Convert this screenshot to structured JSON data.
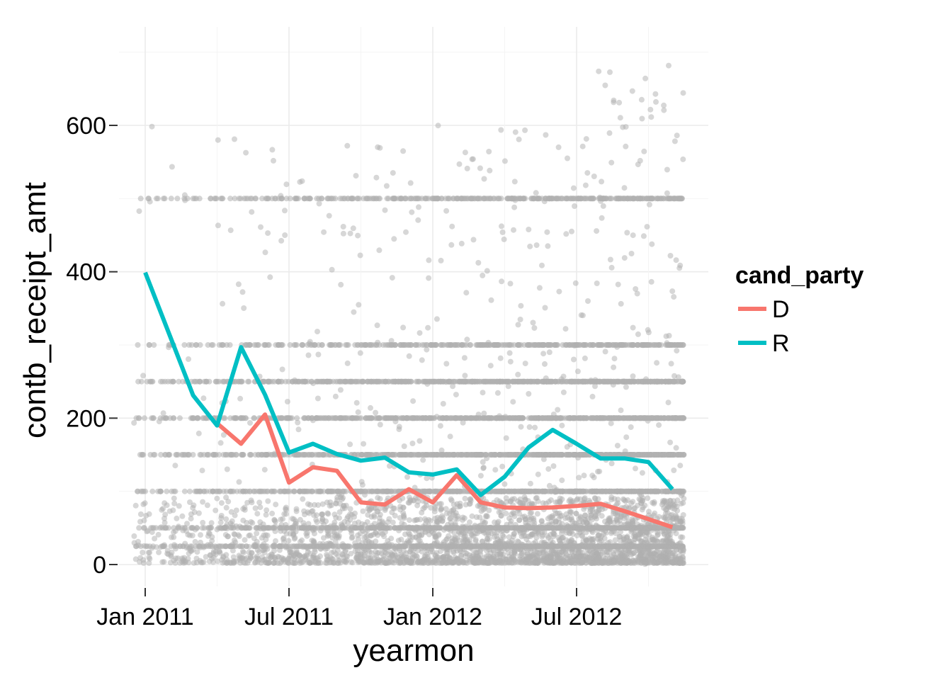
{
  "chart_data": {
    "type": "scatter",
    "xlabel": "yearmon",
    "ylabel": "contb_receipt_amt",
    "x_ticks": [
      "Jan 2011",
      "Jul 2011",
      "Jan 2012",
      "Jul 2012"
    ],
    "y_ticks": [
      "0",
      "200",
      "400",
      "600"
    ],
    "ylim": [
      -40,
      725
    ],
    "xlim": [
      "2010-11",
      "2012-12"
    ],
    "grid": true,
    "legend": {
      "title": "cand_party",
      "placement": "right",
      "entries": [
        {
          "label": "D",
          "color": "#F8766D"
        },
        {
          "label": "R",
          "color": "#00BFC4"
        }
      ]
    },
    "scatter_color": "#B0B0B0",
    "scatter_months": [
      "2011-01",
      "2011-02",
      "2011-03",
      "2011-04",
      "2011-05",
      "2011-06",
      "2011-07",
      "2011-08",
      "2011-09",
      "2011-10",
      "2011-11",
      "2011-12",
      "2012-01",
      "2012-02",
      "2012-03",
      "2012-04",
      "2012-05",
      "2012-06",
      "2012-07",
      "2012-08",
      "2012-09",
      "2012-10",
      "2012-11"
    ],
    "scatter_levels": [
      500,
      300,
      250,
      200,
      150,
      100,
      50,
      25
    ],
    "series": [
      {
        "name": "D",
        "color": "#F8766D",
        "x": [
          "2011-04",
          "2011-05",
          "2011-06",
          "2011-07",
          "2011-08",
          "2011-09",
          "2011-10",
          "2011-11",
          "2011-12",
          "2012-01",
          "2012-02",
          "2012-03",
          "2012-04",
          "2012-05",
          "2012-06",
          "2012-07",
          "2012-08",
          "2012-09",
          "2012-10",
          "2012-11"
        ],
        "values": [
          193,
          165,
          205,
          112,
          133,
          128,
          85,
          82,
          103,
          85,
          122,
          85,
          78,
          77,
          78,
          80,
          83,
          73,
          62,
          51
        ]
      },
      {
        "name": "R",
        "color": "#00BFC4",
        "x": [
          "2011-01",
          "2011-03",
          "2011-04",
          "2011-05",
          "2011-06",
          "2011-07",
          "2011-08",
          "2011-09",
          "2011-10",
          "2011-11",
          "2011-12",
          "2012-01",
          "2012-02",
          "2012-03",
          "2012-04",
          "2012-05",
          "2012-06",
          "2012-07",
          "2012-08",
          "2012-09",
          "2012-10",
          "2012-11"
        ],
        "values": [
          399,
          231,
          190,
          297,
          232,
          153,
          165,
          151,
          142,
          146,
          126,
          123,
          130,
          95,
          120,
          160,
          184,
          165,
          145,
          145,
          140,
          103
        ]
      }
    ]
  }
}
